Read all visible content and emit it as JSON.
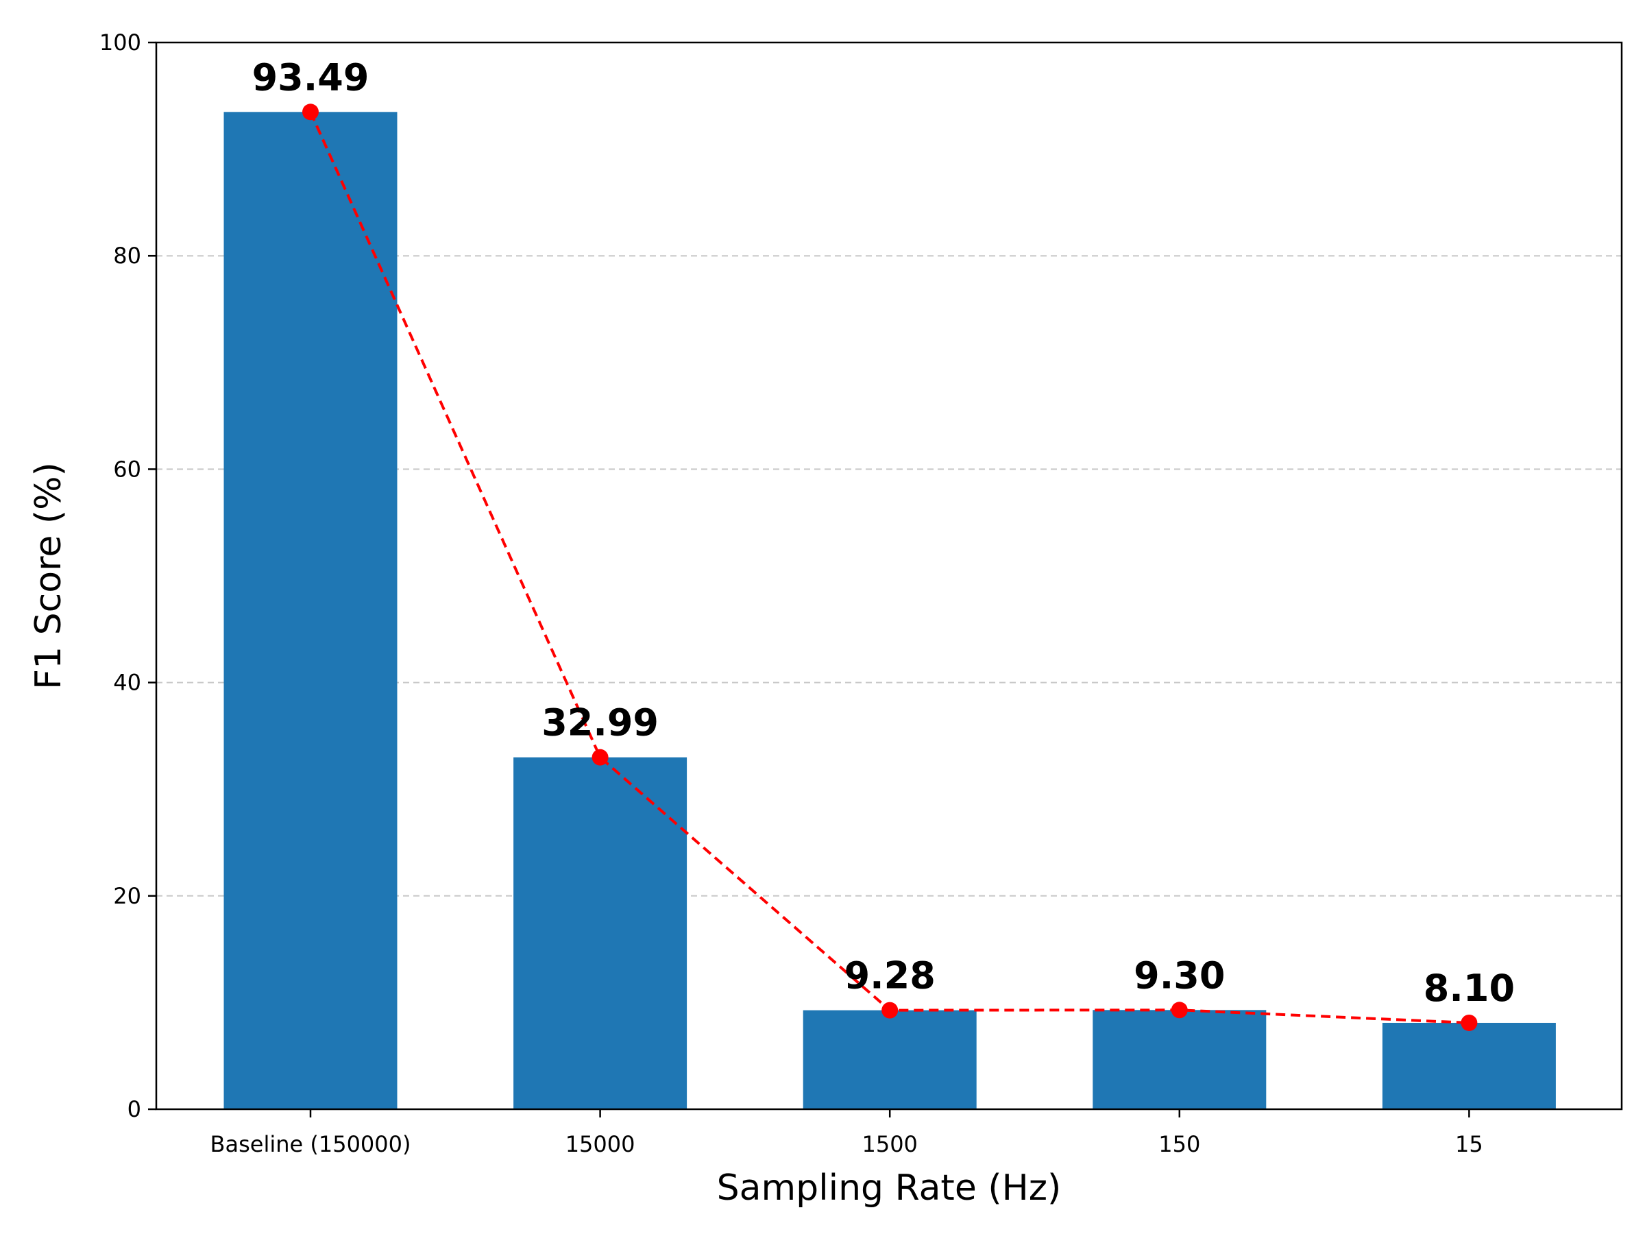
{
  "chart_data": {
    "type": "bar",
    "categories": [
      "Baseline (150000)",
      "15000",
      "1500",
      "150",
      "15"
    ],
    "values": [
      93.49,
      32.99,
      9.28,
      9.3,
      8.1
    ],
    "value_labels": [
      "93.49",
      "32.99",
      "9.28",
      "9.30",
      "8.10"
    ],
    "overlay": {
      "type": "line",
      "style": "dashed",
      "markers": "circle",
      "values": [
        93.49,
        32.99,
        9.28,
        9.3,
        8.1
      ]
    },
    "xlabel": "Sampling Rate (Hz)",
    "ylabel": "F1 Score (%)",
    "ylim": [
      0,
      100
    ],
    "yticks": [
      0,
      20,
      40,
      60,
      80,
      100
    ],
    "ytick_labels": [
      "0",
      "20",
      "40",
      "60",
      "80",
      "100"
    ],
    "grid": "y-dashed",
    "legend": "none",
    "colors": {
      "bar": "#1f77b4",
      "line": "#ff0000",
      "grid": "#c8c8c8",
      "axis": "#000000"
    }
  }
}
